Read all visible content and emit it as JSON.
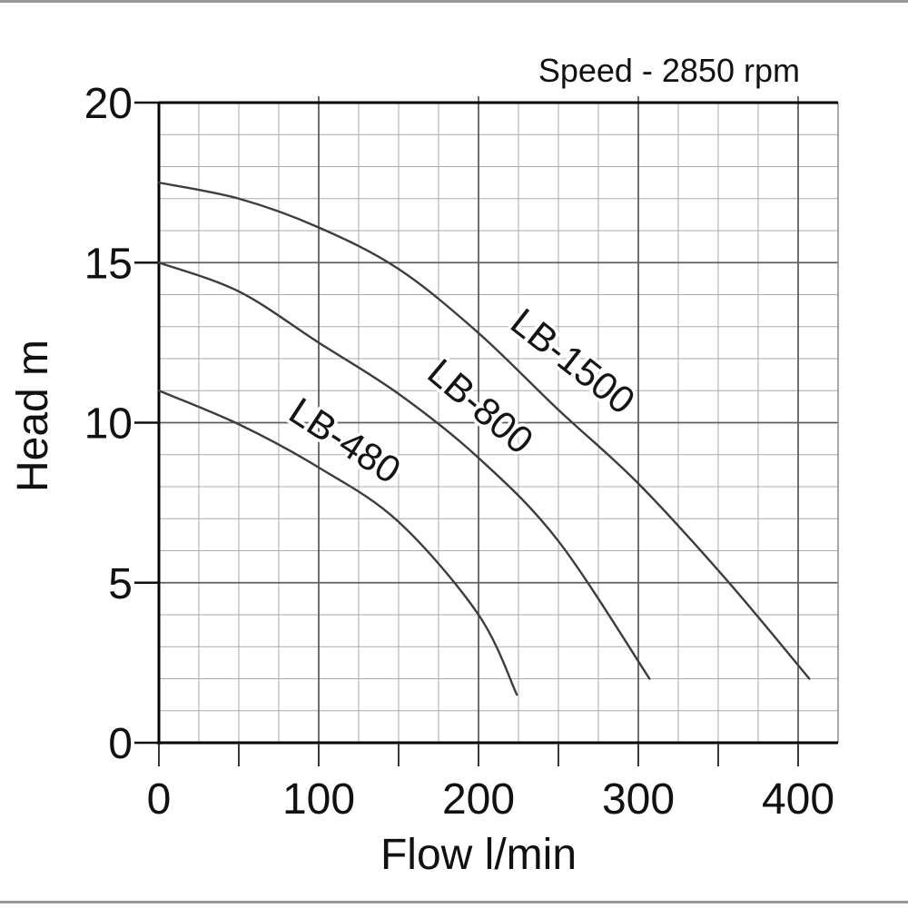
{
  "page": {
    "background": "#ffffff",
    "frame_color": "#999999"
  },
  "chart_data": {
    "type": "line",
    "annotation": "Speed - 2850 rpm",
    "xlabel": "Flow l/min",
    "ylabel": "Head m",
    "xlim": [
      0,
      425
    ],
    "ylim": [
      0,
      20
    ],
    "x_major_ticks": [
      0,
      100,
      200,
      300,
      400
    ],
    "y_major_ticks": [
      0,
      5,
      10,
      15,
      20
    ],
    "x_minor_step": 25,
    "y_minor_step": 1,
    "x_outer_tick_step": 50,
    "grid": "minor+major",
    "legend_position": "inline-curve-labels",
    "line_color": "#3d3d3d",
    "grid_minor_color": "#ababab",
    "grid_major_color": "#5f5f5f",
    "axis_color": "#000000",
    "series": [
      {
        "name": "LB-480",
        "points": [
          [
            0,
            11.0
          ],
          [
            50,
            9.95
          ],
          [
            100,
            8.6
          ],
          [
            150,
            6.9
          ],
          [
            200,
            4.0
          ],
          [
            224,
            1.5
          ]
        ],
        "label_at": [
          112,
          9.1
        ],
        "label_angle": 33
      },
      {
        "name": "LB-800",
        "points": [
          [
            0,
            15.0
          ],
          [
            50,
            14.1
          ],
          [
            100,
            12.5
          ],
          [
            150,
            10.9
          ],
          [
            200,
            8.9
          ],
          [
            250,
            6.3
          ],
          [
            307,
            2.0
          ]
        ],
        "label_at": [
          196,
          10.2
        ],
        "label_angle": 40
      },
      {
        "name": "LB-1500",
        "points": [
          [
            0,
            17.5
          ],
          [
            50,
            17.0
          ],
          [
            100,
            16.1
          ],
          [
            150,
            14.8
          ],
          [
            200,
            12.8
          ],
          [
            250,
            10.4
          ],
          [
            300,
            8.1
          ],
          [
            355,
            5.1
          ],
          [
            407,
            2.0
          ]
        ],
        "label_at": [
          254,
          11.6
        ],
        "label_angle": 38
      }
    ]
  }
}
